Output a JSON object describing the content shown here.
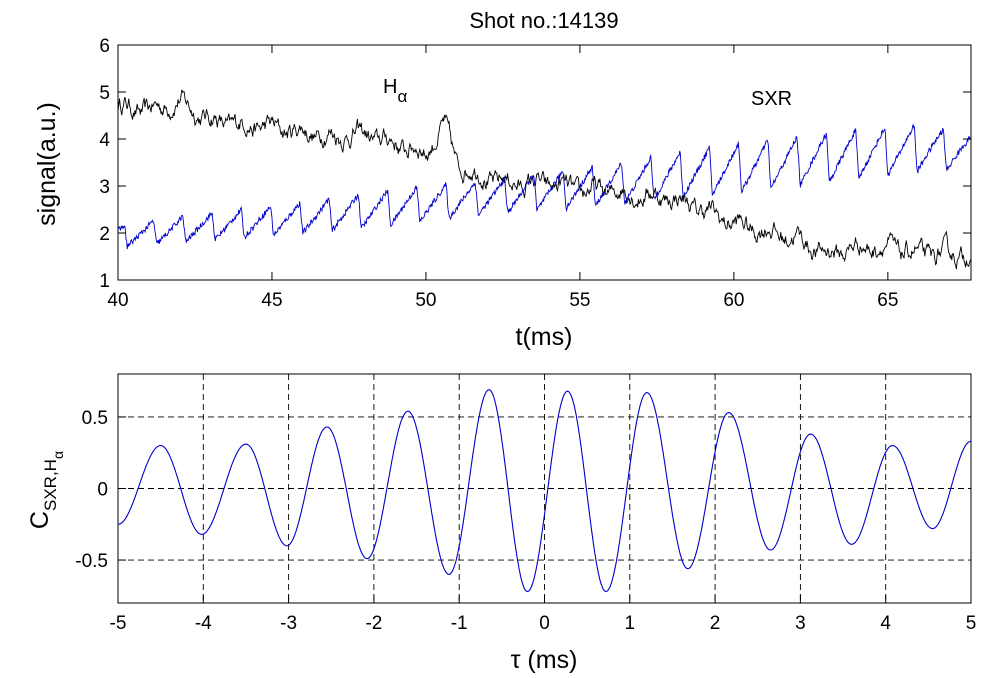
{
  "chart_data": [
    {
      "type": "line",
      "title": "Shot no.:14139",
      "xlabel": "t(ms)",
      "ylabel": "signal(a.u.)",
      "xlim": [
        40,
        67.7
      ],
      "ylim": [
        1,
        6
      ],
      "xticks": [
        40,
        45,
        50,
        55,
        60,
        65
      ],
      "yticks": [
        1,
        2,
        3,
        4,
        5,
        6
      ],
      "grid": false,
      "annotations": [
        {
          "text": "H",
          "sub": "α",
          "x": 48.5,
          "y": 4.7
        },
        {
          "text": "SXR",
          "x": 61.4,
          "y": 4.55
        }
      ],
      "series": [
        {
          "name": "Hα",
          "color": "#000000",
          "x": [
            40,
            41,
            42,
            43,
            44,
            45,
            46,
            47,
            48,
            49,
            50,
            50.6,
            51,
            52,
            53,
            54,
            55,
            56,
            57,
            58,
            59,
            60,
            61,
            62,
            63,
            64,
            65,
            66,
            67.7
          ],
          "y": [
            4.7,
            4.6,
            4.8,
            4.4,
            4.3,
            4.25,
            4.15,
            4.05,
            4.1,
            3.9,
            3.7,
            4.3,
            3.5,
            3.15,
            3.05,
            3.05,
            2.9,
            2.9,
            2.8,
            2.75,
            2.5,
            2.2,
            2.05,
            1.9,
            1.55,
            1.7,
            1.7,
            1.55,
            1.55
          ]
        },
        {
          "name": "SXR",
          "color": "#0000cc",
          "period": 0.95,
          "x": [
            40,
            42,
            44,
            46,
            48,
            50,
            52,
            54,
            56,
            58,
            60,
            62,
            64,
            66,
            67.7
          ],
          "y_base": [
            1.7,
            1.8,
            1.9,
            2.0,
            2.1,
            2.25,
            2.4,
            2.5,
            2.6,
            2.75,
            2.85,
            3.0,
            3.15,
            3.3,
            3.35
          ],
          "y_peak": [
            2.15,
            2.35,
            2.5,
            2.65,
            2.85,
            3.0,
            3.1,
            3.3,
            3.45,
            3.7,
            3.9,
            4.05,
            4.2,
            4.3,
            4.1
          ]
        }
      ]
    },
    {
      "type": "line",
      "xlabel": "τ (ms)",
      "ylabel": "C",
      "ylabel_sub": "SXR,H",
      "ylabel_subsub": "α",
      "xlim": [
        -5,
        5
      ],
      "ylim": [
        -0.8,
        0.8
      ],
      "xticks": [
        -5,
        -4,
        -3,
        -2,
        -1,
        0,
        1,
        2,
        3,
        4,
        5
      ],
      "yticks": [
        -0.5,
        0,
        0.5
      ],
      "ytick_labels": [
        "-0.5",
        "0",
        "0.5"
      ],
      "grid": true,
      "series": [
        {
          "name": "",
          "color": "#0000cc",
          "x": [
            -5,
            -4.5,
            -4.02,
            -3.5,
            -3.02,
            -2.55,
            -2.08,
            -1.6,
            -1.12,
            -0.65,
            -0.2,
            0.27,
            0.72,
            1.2,
            1.68,
            2.16,
            2.65,
            3.12,
            3.6,
            4.08,
            4.55,
            5
          ],
          "y": [
            -0.25,
            0.3,
            -0.32,
            0.31,
            -0.4,
            0.43,
            -0.49,
            0.54,
            -0.6,
            0.69,
            -0.72,
            0.68,
            -0.72,
            0.67,
            -0.56,
            0.53,
            -0.43,
            0.38,
            -0.39,
            0.3,
            -0.28,
            0.33
          ]
        }
      ]
    }
  ]
}
